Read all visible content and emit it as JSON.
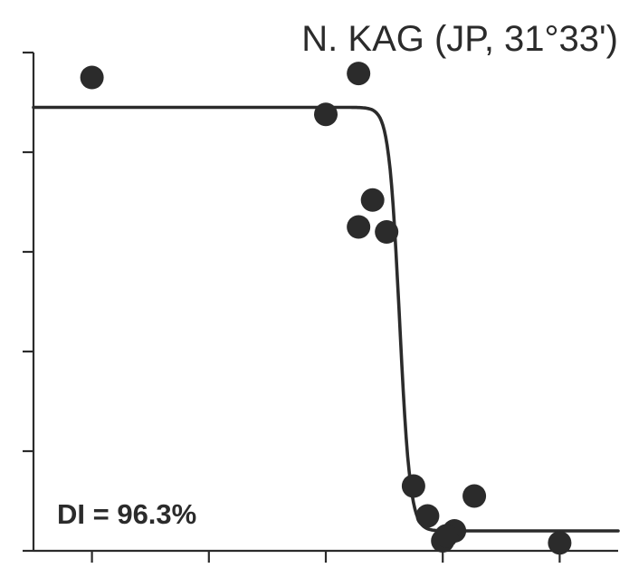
{
  "chart_data": {
    "type": "scatter",
    "title": "N. KAG (JP, 31°33')",
    "annotation": "DI = 96.3%",
    "xlabel": "",
    "ylabel": "",
    "xlim": [
      0,
      5
    ],
    "ylim": [
      0,
      5
    ],
    "x_ticks": [
      0.5,
      1.5,
      2.5,
      3.5,
      4.5
    ],
    "y_ticks": [
      0,
      1,
      2,
      3,
      4,
      5
    ],
    "tick_labels_shown": false,
    "grid": false,
    "legend": "none",
    "color": "#2b2b2b",
    "series": [
      {
        "points": [
          {
            "x": 0.5,
            "y": 4.75
          },
          {
            "x": 2.78,
            "y": 4.79
          },
          {
            "x": 2.5,
            "y": 4.38
          },
          {
            "x": 2.9,
            "y": 3.52
          },
          {
            "x": 2.78,
            "y": 3.25
          },
          {
            "x": 3.02,
            "y": 3.2
          },
          {
            "x": 3.25,
            "y": 0.65
          },
          {
            "x": 3.37,
            "y": 0.35
          },
          {
            "x": 3.5,
            "y": 0.1
          },
          {
            "x": 3.6,
            "y": 0.2
          },
          {
            "x": 3.53,
            "y": 0.15
          },
          {
            "x": 3.77,
            "y": 0.55
          },
          {
            "x": 4.5,
            "y": 0.08
          }
        ]
      }
    ],
    "fit": {
      "type": "logistic",
      "upper": 4.45,
      "lower": 0.2,
      "midpoint": 3.13,
      "slope": 22
    }
  }
}
